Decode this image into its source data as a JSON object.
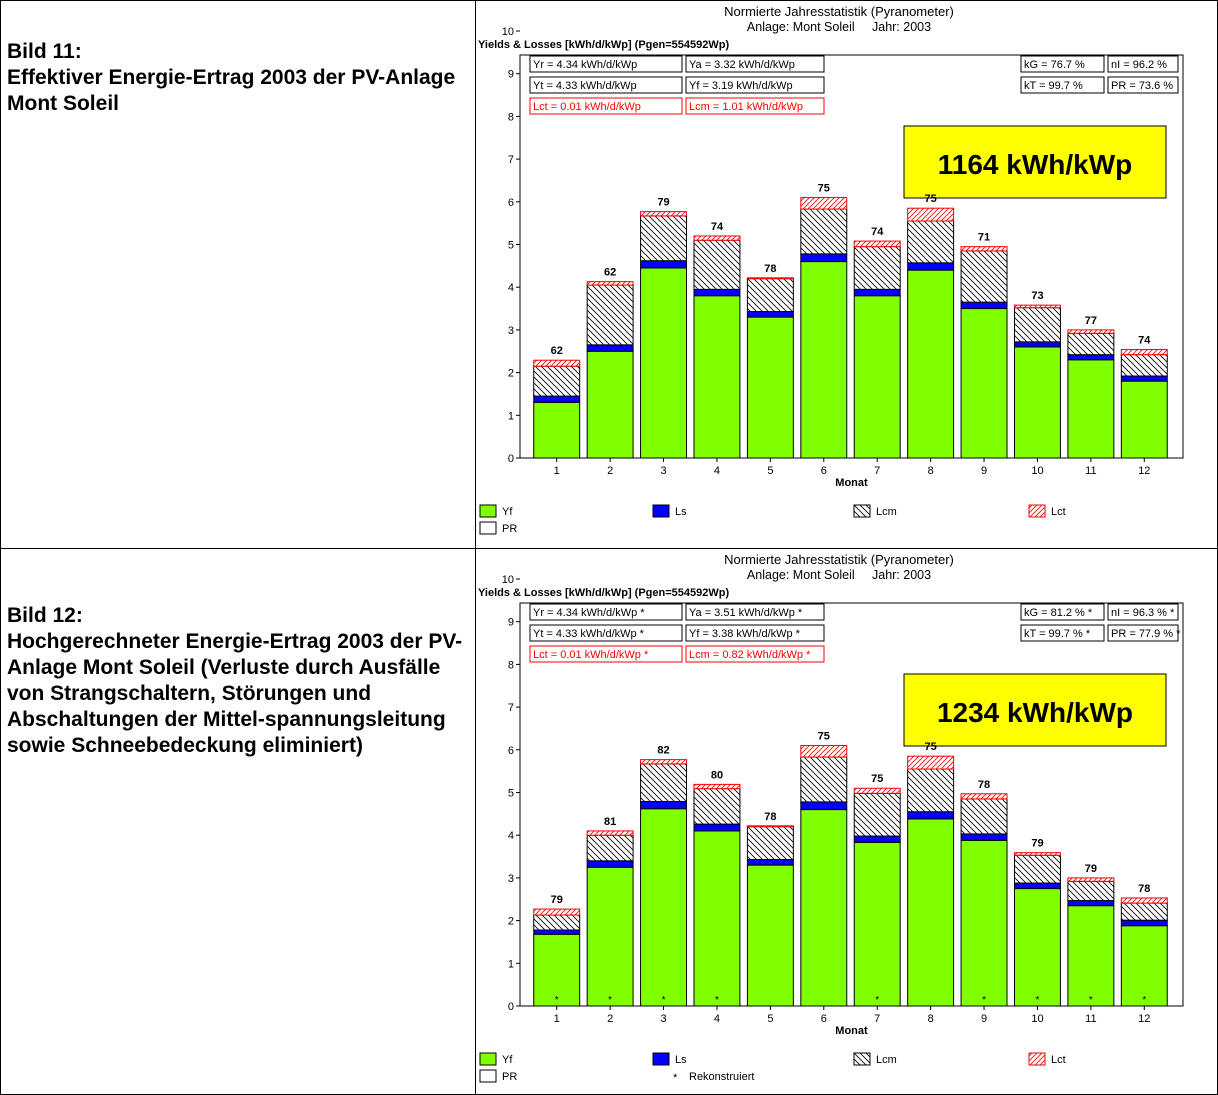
{
  "captions": [
    {
      "number": "Bild 11:",
      "text": "Effektiver Energie-Ertrag 2003 der PV-Anlage Mont Soleil"
    },
    {
      "number": "Bild 12:",
      "text": "Hochgerechneter Energie-Ertrag 2003 der PV-Anlage Mont Soleil (Verluste durch Ausfälle von Strangschaltern, Störungen und Abschaltungen der Mittel-spannungsleitung sowie Schneebedeckung eliminiert)"
    }
  ],
  "colors": {
    "yf": "#80ff00",
    "ls": "#0000ff",
    "lcm": "#000000",
    "lct": "#ff0000",
    "highlight": "#ffff00",
    "red_text": "#ff0000"
  },
  "chart_data": [
    {
      "type": "bar",
      "stacked": true,
      "title": "Normierte Jahresstatistik (Pyranometer)",
      "subtitle": "Anlage: Mont Soleil     Jahr: 2003",
      "ylabel": "Yields & Losses [kWh/d/kWp] (Pgen=554592Wp)",
      "xlabel": "Monat",
      "ylim": [
        0,
        10
      ],
      "yticks": [
        "0",
        "1",
        "2",
        "3",
        "4",
        "5",
        "6",
        "7",
        "8",
        "9",
        "10"
      ],
      "categories": [
        "1",
        "2",
        "3",
        "4",
        "5",
        "6",
        "7",
        "8",
        "9",
        "10",
        "11",
        "12"
      ],
      "series": [
        {
          "name": "Yf",
          "values": [
            1.3,
            2.5,
            4.45,
            3.8,
            3.3,
            4.6,
            3.8,
            4.4,
            3.5,
            2.6,
            2.3,
            1.8
          ]
        },
        {
          "name": "Ls",
          "values": [
            0.15,
            0.15,
            0.17,
            0.15,
            0.13,
            0.18,
            0.15,
            0.17,
            0.15,
            0.12,
            0.12,
            0.12
          ]
        },
        {
          "name": "Lcm",
          "values": [
            0.7,
            1.4,
            1.05,
            1.15,
            0.77,
            1.05,
            1.0,
            0.98,
            1.2,
            0.8,
            0.5,
            0.5
          ]
        },
        {
          "name": "Lct",
          "values": [
            0.14,
            0.08,
            0.1,
            0.1,
            0.02,
            0.27,
            0.13,
            0.3,
            0.1,
            0.06,
            0.08,
            0.12
          ]
        }
      ],
      "pr_labels": [
        "62",
        "62",
        "79",
        "74",
        "78",
        "75",
        "74",
        "75",
        "71",
        "73",
        "77",
        "74"
      ],
      "stats": [
        {
          "text": "Yr = 4.34 kWh/d/kWp",
          "red": false
        },
        {
          "text": "Ya = 3.32 kWh/d/kWp",
          "red": false
        },
        {
          "text": "kG = 76.7 %",
          "red": false
        },
        {
          "text": "nI = 96.2 %",
          "red": false
        },
        {
          "text": "Yt = 4.33 kWh/d/kWp",
          "red": false
        },
        {
          "text": "Yf = 3.19 kWh/d/kWp",
          "red": false
        },
        {
          "text": "kT = 99.7 %",
          "red": false
        },
        {
          "text": "PR = 73.6 %",
          "red": false
        },
        {
          "text": "Lct = 0.01 kWh/d/kWp",
          "red": true
        },
        {
          "text": "Lcm = 1.01 kWh/d/kWp",
          "red": true
        }
      ],
      "highlight": "1164 kWh/kWp",
      "legend": [
        {
          "name": "Yf",
          "swatch": "yf"
        },
        {
          "name": "Ls",
          "swatch": "ls"
        },
        {
          "name": "Lcm",
          "swatch": "lcm"
        },
        {
          "name": "Lct",
          "swatch": "lct"
        },
        {
          "name": "PR",
          "swatch": "pr"
        }
      ]
    },
    {
      "type": "bar",
      "stacked": true,
      "title": "Normierte Jahresstatistik (Pyranometer)",
      "subtitle": "Anlage: Mont Soleil     Jahr: 2003",
      "ylabel": "Yields & Losses [kWh/d/kWp] (Pgen=554592Wp)",
      "xlabel": "Monat",
      "ylim": [
        0,
        10
      ],
      "yticks": [
        "0",
        "1",
        "2",
        "3",
        "4",
        "5",
        "6",
        "7",
        "8",
        "9",
        "10"
      ],
      "categories": [
        "1",
        "2",
        "3",
        "4",
        "5",
        "6",
        "7",
        "8",
        "9",
        "10",
        "11",
        "12"
      ],
      "series": [
        {
          "name": "Yf",
          "values": [
            1.68,
            3.25,
            4.62,
            4.1,
            3.3,
            4.6,
            3.83,
            4.38,
            3.88,
            2.75,
            2.35,
            1.88
          ]
        },
        {
          "name": "Ls",
          "values": [
            0.1,
            0.15,
            0.17,
            0.16,
            0.13,
            0.18,
            0.15,
            0.17,
            0.15,
            0.13,
            0.12,
            0.13
          ]
        },
        {
          "name": "Lcm",
          "values": [
            0.35,
            0.6,
            0.88,
            0.83,
            0.77,
            1.05,
            1.0,
            1.0,
            0.82,
            0.65,
            0.45,
            0.4
          ]
        },
        {
          "name": "Lct",
          "values": [
            0.14,
            0.1,
            0.1,
            0.1,
            0.02,
            0.27,
            0.12,
            0.3,
            0.12,
            0.06,
            0.08,
            0.12
          ]
        }
      ],
      "pr_labels": [
        "79",
        "81",
        "82",
        "80",
        "78",
        "75",
        "75",
        "75",
        "78",
        "79",
        "79",
        "78"
      ],
      "reconstructed": [
        "*",
        "*",
        "*",
        "*",
        "",
        "",
        "*",
        "",
        "*",
        "*",
        "*",
        "*"
      ],
      "stats": [
        {
          "text": "Yr = 4.34 kWh/d/kWp *",
          "red": false
        },
        {
          "text": "Ya = 3.51 kWh/d/kWp *",
          "red": false
        },
        {
          "text": "kG = 81.2 % *",
          "red": false
        },
        {
          "text": "nI = 96.3 % *",
          "red": false
        },
        {
          "text": "Yt = 4.33 kWh/d/kWp *",
          "red": false
        },
        {
          "text": "Yf = 3.38 kWh/d/kWp *",
          "red": false
        },
        {
          "text": "kT = 99.7 % *",
          "red": false
        },
        {
          "text": "PR = 77.9 % *",
          "red": false
        },
        {
          "text": "Lct = 0.01 kWh/d/kWp *",
          "red": true
        },
        {
          "text": "Lcm = 0.82 kWh/d/kWp *",
          "red": true
        }
      ],
      "highlight": "1234 kWh/kWp",
      "legend": [
        {
          "name": "Yf",
          "swatch": "yf"
        },
        {
          "name": "Ls",
          "swatch": "ls"
        },
        {
          "name": "Lcm",
          "swatch": "lcm"
        },
        {
          "name": "Lct",
          "swatch": "lct"
        },
        {
          "name": "PR",
          "swatch": "pr"
        },
        {
          "name": "Rekonstruiert",
          "swatch": "star"
        }
      ]
    }
  ]
}
